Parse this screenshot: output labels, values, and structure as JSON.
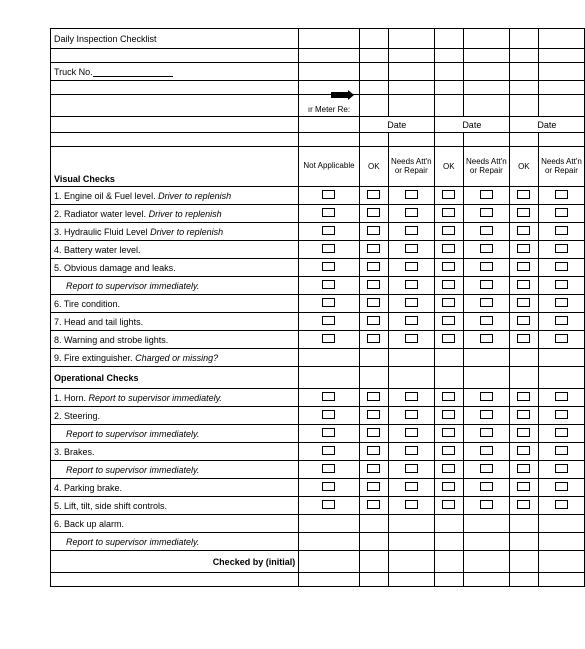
{
  "title": "Daily Inspection Checklist",
  "truck_label": "Truck No.",
  "meter_label": "ır Meter Re:",
  "date_label": "Date",
  "col_headers": {
    "na": "Not Applicable",
    "ok": "OK",
    "needs": "Needs Att'n or Repair"
  },
  "visual_header": "Visual Checks",
  "operational_header": "Operational Checks",
  "visual_rows": [
    {
      "n": "1.",
      "t": "Engine oil & Fuel level.",
      "note": "Driver to replenish",
      "cb": true
    },
    {
      "n": "2.",
      "t": "Radiator water level.",
      "note": "Driver to replenish",
      "cb": true
    },
    {
      "n": "3.",
      "t": "Hydraulic Fluid Level",
      "note": "Driver to replenish",
      "cb": true
    },
    {
      "n": "4.",
      "t": "Battery water level.",
      "note": "",
      "cb": true
    },
    {
      "n": "5.",
      "t": "Obvious damage and leaks.",
      "note": "",
      "cb": true
    },
    {
      "n": "",
      "t": "",
      "note": "Report to supervisor immediately.",
      "cb": true,
      "indent": true
    },
    {
      "n": "6.",
      "t": "Tire condition.",
      "note": "",
      "cb": true
    },
    {
      "n": "7.",
      "t": "Head and tail lights.",
      "note": "",
      "cb": true
    },
    {
      "n": "8.",
      "t": "Warning and strobe lights.",
      "note": "",
      "cb": true
    },
    {
      "n": "9.",
      "t": "Fire extinguisher.",
      "note": "Charged or missing?",
      "cb": false
    }
  ],
  "operational_rows": [
    {
      "n": "1.",
      "t": "Horn.",
      "note": "Report to supervisor immediately.",
      "cb": true
    },
    {
      "n": "2.",
      "t": "Steering.",
      "note": "",
      "cb": true
    },
    {
      "n": "",
      "t": "",
      "note": "Report to supervisor immediately.",
      "cb": true,
      "indent": true
    },
    {
      "n": "3.",
      "t": "Brakes.",
      "note": "",
      "cb": true
    },
    {
      "n": "",
      "t": "",
      "note": "Report to supervisor immediately.",
      "cb": true,
      "indent": true
    },
    {
      "n": "4.",
      "t": "Parking brake.",
      "note": "",
      "cb": true
    },
    {
      "n": "5.",
      "t": "Lift, tilt, side shift controls.",
      "note": "",
      "cb": true
    },
    {
      "n": "6.",
      "t": "Back up alarm.",
      "note": "",
      "cb": false
    },
    {
      "n": "",
      "t": "",
      "note": "Report to supervisor immediately.",
      "cb": false,
      "indent": true
    }
  ],
  "checked_by": "Checked by (initial)"
}
